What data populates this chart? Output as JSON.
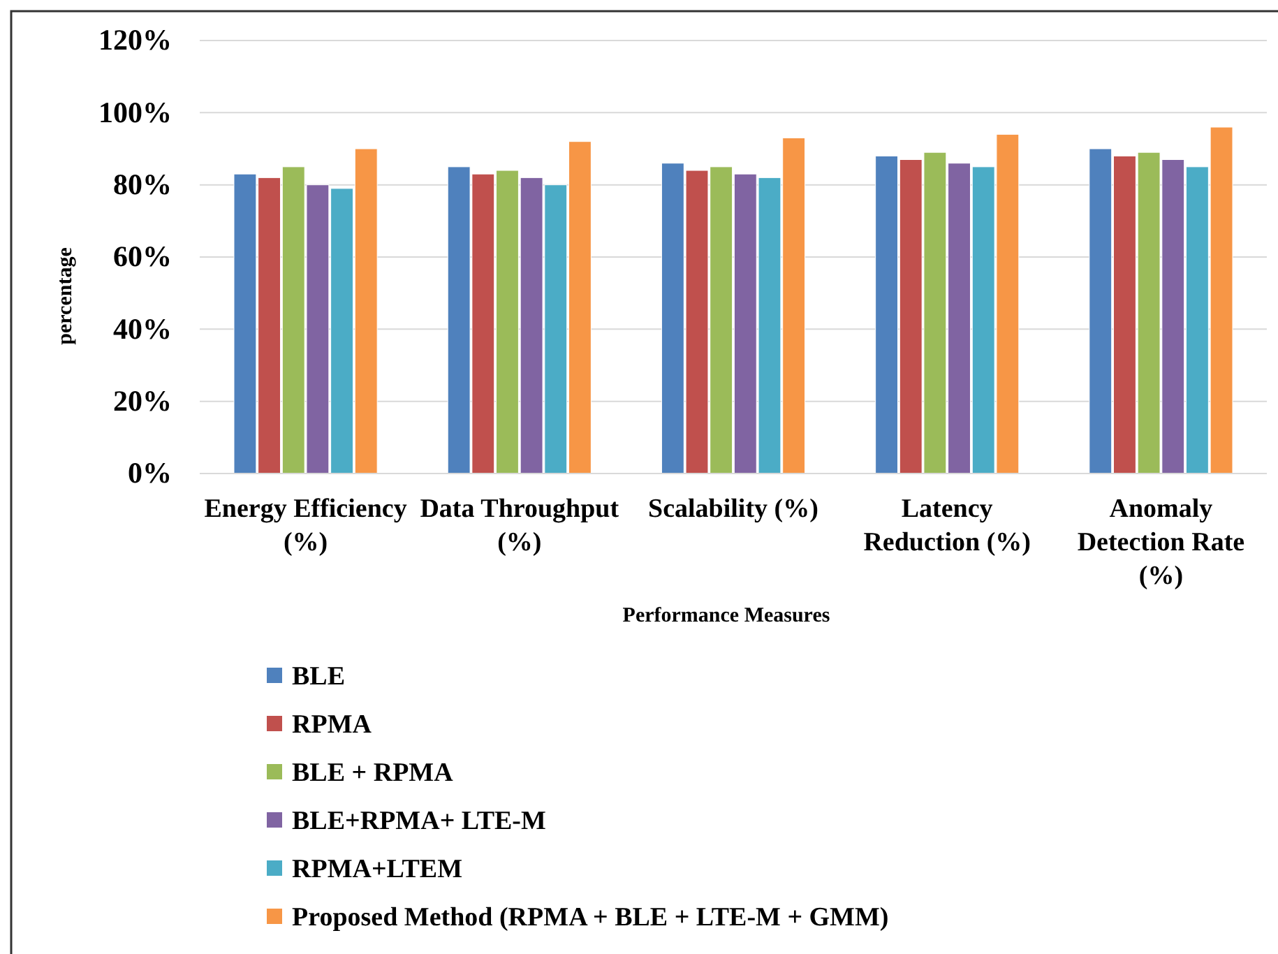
{
  "chart_data": {
    "type": "bar",
    "ylabel": "percentage",
    "xlabel": "Performance Measures",
    "categories": [
      "Energy Efficiency (%)",
      "Data Throughput (%)",
      "Scalability (%)",
      "Latency Reduction (%)",
      "Anomaly Detection Rate (%)"
    ],
    "series": [
      {
        "name": "BLE",
        "color": "#4f81bd",
        "values": [
          83,
          85,
          86,
          88,
          90
        ]
      },
      {
        "name": "RPMA",
        "color": "#c0504d",
        "values": [
          82,
          83,
          84,
          87,
          88
        ]
      },
      {
        "name": "BLE + RPMA",
        "color": "#9bbb59",
        "values": [
          85,
          84,
          85,
          89,
          89
        ]
      },
      {
        "name": "BLE+RPMA+ LTE-M",
        "color": "#8064a2",
        "values": [
          80,
          82,
          83,
          86,
          87
        ]
      },
      {
        "name": "RPMA+LTEM",
        "color": "#4bacc6",
        "values": [
          79,
          80,
          82,
          85,
          85
        ]
      },
      {
        "name": "Proposed Method (RPMA + BLE + LTE-M + GMM)",
        "color": "#f79646",
        "values": [
          90,
          92,
          93,
          94,
          96
        ]
      }
    ],
    "ylim": [
      0,
      120
    ],
    "yticks": [
      {
        "value": 0,
        "label": "0%"
      },
      {
        "value": 20,
        "label": "20%"
      },
      {
        "value": 40,
        "label": "40%"
      },
      {
        "value": 60,
        "label": "60%"
      },
      {
        "value": 80,
        "label": "80%"
      },
      {
        "value": 100,
        "label": "100%"
      },
      {
        "value": 120,
        "label": "120%"
      }
    ],
    "grid": "y",
    "legend": "bottom"
  }
}
